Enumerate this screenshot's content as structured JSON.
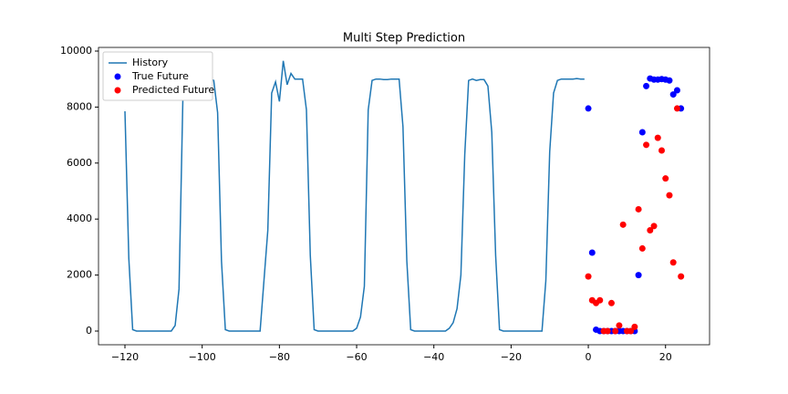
{
  "chart_data": {
    "type": "line",
    "title": "Multi Step Prediction",
    "xlim": [
      -126.85,
      31.4
    ],
    "ylim": [
      -489,
      10130
    ],
    "xticks": [
      {
        "value": -120,
        "label": "−120"
      },
      {
        "value": -100,
        "label": "−100"
      },
      {
        "value": -80,
        "label": "−80"
      },
      {
        "value": -60,
        "label": "−60"
      },
      {
        "value": -40,
        "label": "−40"
      },
      {
        "value": -20,
        "label": "−20"
      },
      0,
      20
    ],
    "yticks": [
      0,
      2000,
      4000,
      6000,
      8000,
      10000
    ],
    "legend": "upper-left",
    "grid": false,
    "series": [
      {
        "name": "History",
        "kind": "line",
        "color": "#1f77b4",
        "x": [
          -120,
          -119,
          -118,
          -117,
          -116,
          -115,
          -114,
          -113,
          -112,
          -111,
          -110,
          -109,
          -108,
          -107,
          -106,
          -105,
          -104,
          -103,
          -102,
          -101,
          -100,
          -99,
          -98,
          -97,
          -96,
          -95,
          -94,
          -93,
          -92,
          -91,
          -90,
          -89,
          -88,
          -87,
          -86,
          -85,
          -84,
          -83,
          -82,
          -81,
          -80,
          -79,
          -78,
          -77,
          -76,
          -75,
          -74,
          -73,
          -72,
          -71,
          -70,
          -69,
          -68,
          -67,
          -66,
          -65,
          -64,
          -63,
          -62,
          -61,
          -60,
          -59,
          -58,
          -57,
          -56,
          -55,
          -54,
          -53,
          -52,
          -51,
          -50,
          -49,
          -48,
          -47,
          -46,
          -45,
          -44,
          -43,
          -42,
          -41,
          -40,
          -39,
          -38,
          -37,
          -36,
          -35,
          -34,
          -33,
          -32,
          -31,
          -30,
          -29,
          -28,
          -27,
          -26,
          -25,
          -24,
          -23,
          -22,
          -21,
          -20,
          -19,
          -18,
          -17,
          -16,
          -15,
          -14,
          -13,
          -12,
          -11,
          -10,
          -9,
          -8,
          -7,
          -6,
          -5,
          -4,
          -3,
          -2,
          -1
        ],
        "values": [
          7850,
          2600,
          50,
          0,
          0,
          0,
          0,
          0,
          0,
          0,
          0,
          0,
          0,
          200,
          1500,
          8300,
          9000,
          9000,
          9000,
          9000,
          8950,
          9000,
          9000,
          8950,
          7800,
          2500,
          50,
          0,
          0,
          0,
          0,
          0,
          0,
          0,
          0,
          0,
          1800,
          3600,
          8500,
          8900,
          8200,
          9650,
          8800,
          9200,
          9000,
          9000,
          9000,
          7900,
          2700,
          50,
          0,
          0,
          0,
          0,
          0,
          0,
          0,
          0,
          0,
          0,
          100,
          500,
          1600,
          7900,
          8950,
          9000,
          9000,
          8980,
          8980,
          9000,
          9000,
          9000,
          7300,
          2500,
          50,
          0,
          0,
          0,
          0,
          0,
          0,
          0,
          0,
          0,
          100,
          300,
          800,
          2000,
          6300,
          8950,
          9000,
          8950,
          8980,
          8980,
          8750,
          7100,
          2700,
          50,
          0,
          0,
          0,
          0,
          0,
          0,
          0,
          0,
          0,
          0,
          0,
          1800,
          6400,
          8500,
          8950,
          9000,
          9000,
          9000,
          9000,
          9020,
          9000,
          9000
        ]
      },
      {
        "name": "True Future",
        "kind": "markers",
        "color": "#0000ff",
        "x": [
          0,
          1,
          2,
          3,
          4,
          5,
          6,
          7,
          8,
          9,
          10,
          11,
          12,
          13,
          14,
          15,
          16,
          17,
          18,
          19,
          20,
          21,
          22,
          23,
          24
        ],
        "values": [
          7950,
          2800,
          50,
          0,
          0,
          0,
          0,
          0,
          0,
          0,
          0,
          0,
          0,
          2000,
          7100,
          8750,
          9020,
          8980,
          8980,
          9000,
          8980,
          8950,
          8450,
          8600,
          7950
        ]
      },
      {
        "name": "Predicted Future",
        "kind": "markers",
        "color": "#ff0000",
        "x": [
          0,
          1,
          2,
          3,
          4,
          5,
          6,
          7,
          8,
          9,
          10,
          11,
          12,
          13,
          14,
          15,
          16,
          17,
          18,
          19,
          20,
          21,
          22,
          23,
          24
        ],
        "values": [
          1950,
          1100,
          1000,
          1100,
          0,
          0,
          1000,
          0,
          200,
          3800,
          0,
          0,
          150,
          4350,
          2950,
          6650,
          3600,
          3750,
          6900,
          6450,
          5450,
          4850,
          2450,
          7950,
          1950
        ]
      }
    ]
  }
}
